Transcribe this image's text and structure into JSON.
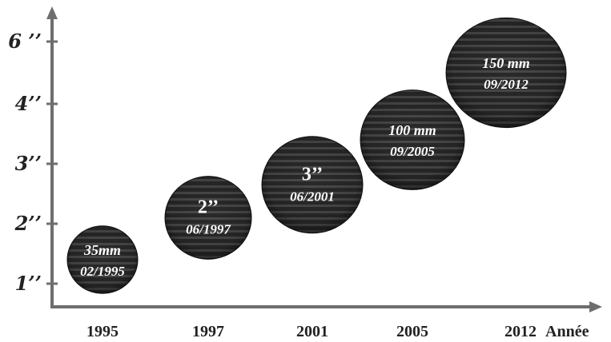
{
  "chart_data": {
    "type": "scatter",
    "title": "",
    "xlabel": "Année",
    "ylabel": "",
    "y_tick_labels": [
      "1’’",
      "2’’",
      "3’’",
      "4’’",
      "6 ’’"
    ],
    "x_tick_labels": [
      "1995",
      "1997",
      "2001",
      "2005",
      "2012"
    ],
    "bubbles": [
      {
        "year": "1995",
        "level": 1.4,
        "size": "35mm",
        "date": "02/1995"
      },
      {
        "year": "1997",
        "level": 2.1,
        "size": "2’’",
        "date": "06/1997"
      },
      {
        "year": "2001",
        "level": 2.65,
        "size": "3’’",
        "date": "06/2001"
      },
      {
        "year": "2005",
        "level": 3.4,
        "size": "100 mm",
        "date": "09/2005"
      },
      {
        "year": "2012",
        "level": 4.5,
        "size": "150 mm",
        "date": "09/2012"
      }
    ],
    "grid": false,
    "legend": "none"
  },
  "colors": {
    "axis": "#6e6e6e",
    "bubble_dark": "#222222",
    "bubble_stripe": "#4a4a4a",
    "text": "#222222"
  }
}
